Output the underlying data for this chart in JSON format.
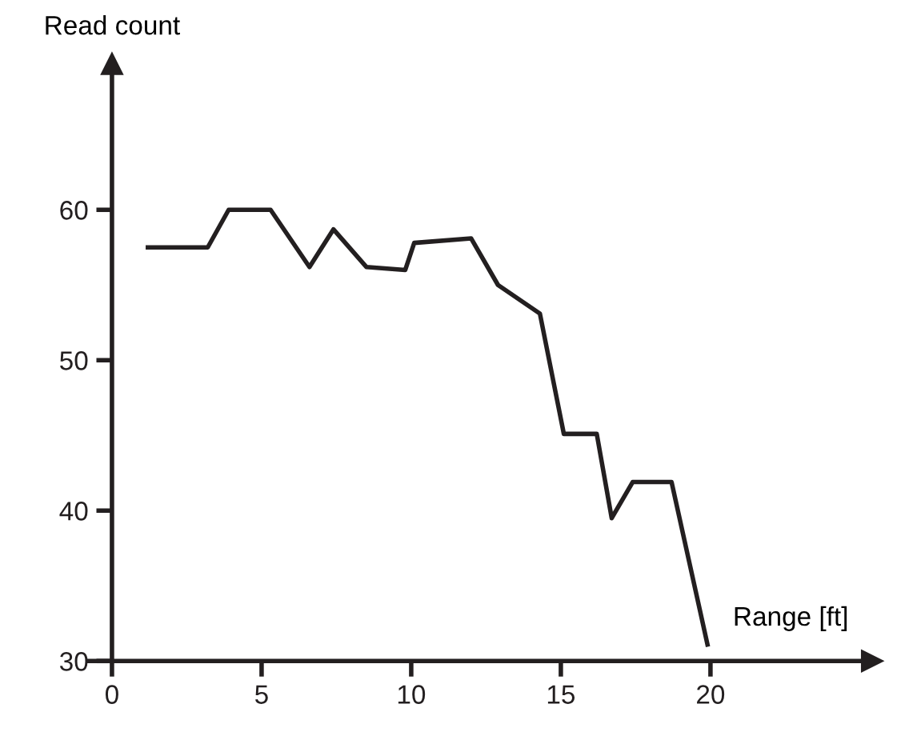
{
  "chart_data": {
    "type": "line",
    "ylabel": "Read count",
    "xlabel": "Range [ft]",
    "x": [
      1.2,
      3.2,
      3.9,
      5.3,
      6.6,
      7.4,
      8.5,
      9.8,
      10.1,
      12.0,
      12.9,
      14.3,
      15.1,
      16.2,
      16.7,
      17.4,
      18.7,
      19.9
    ],
    "series": [
      {
        "color": "#231f20",
        "values": [
          57.5,
          57.5,
          60,
          60,
          56.2,
          58.7,
          56.2,
          56.0,
          57.8,
          58.1,
          55.0,
          53.1,
          45.1,
          45.1,
          39.5,
          41.9,
          41.9,
          31.1
        ]
      }
    ],
    "xlim": [
      -0.8,
      25.4
    ],
    "ylim": [
      30,
      69.7
    ],
    "xticks": [
      0,
      5,
      10,
      15,
      20
    ],
    "yticks": [
      30,
      40,
      50,
      60
    ],
    "grid": false,
    "legend": false,
    "marker": "none",
    "line_style": "solid"
  }
}
